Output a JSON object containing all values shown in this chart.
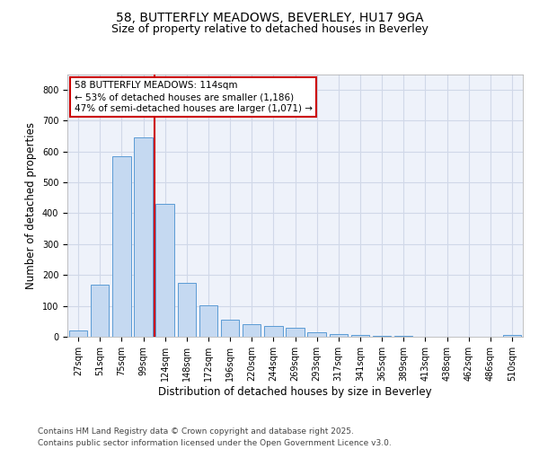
{
  "title1": "58, BUTTERFLY MEADOWS, BEVERLEY, HU17 9GA",
  "title2": "Size of property relative to detached houses in Beverley",
  "xlabel": "Distribution of detached houses by size in Beverley",
  "ylabel": "Number of detached properties",
  "categories": [
    "27sqm",
    "51sqm",
    "75sqm",
    "99sqm",
    "124sqm",
    "148sqm",
    "172sqm",
    "196sqm",
    "220sqm",
    "244sqm",
    "269sqm",
    "293sqm",
    "317sqm",
    "341sqm",
    "365sqm",
    "389sqm",
    "413sqm",
    "438sqm",
    "462sqm",
    "486sqm",
    "510sqm"
  ],
  "values": [
    20,
    168,
    583,
    645,
    430,
    175,
    102,
    55,
    40,
    35,
    28,
    15,
    10,
    5,
    3,
    2,
    1,
    1,
    0,
    0,
    5
  ],
  "bar_color": "#c5d9f1",
  "bar_edge_color": "#5b9bd5",
  "grid_color": "#d0d8e8",
  "background_color": "#eef2fa",
  "annotation_text_line1": "58 BUTTERFLY MEADOWS: 114sqm",
  "annotation_text_line2": "← 53% of detached houses are smaller (1,186)",
  "annotation_text_line3": "47% of semi-detached houses are larger (1,071) →",
  "annotation_box_color": "#ffffff",
  "annotation_border_color": "#cc0000",
  "vline_color": "#cc0000",
  "vline_x": 3.5,
  "ylim": [
    0,
    850
  ],
  "yticks": [
    0,
    100,
    200,
    300,
    400,
    500,
    600,
    700,
    800
  ],
  "footer_line1": "Contains HM Land Registry data © Crown copyright and database right 2025.",
  "footer_line2": "Contains public sector information licensed under the Open Government Licence v3.0.",
  "title_fontsize": 10,
  "subtitle_fontsize": 9,
  "tick_fontsize": 7,
  "label_fontsize": 8.5,
  "footer_fontsize": 6.5,
  "annotation_fontsize": 7.5
}
